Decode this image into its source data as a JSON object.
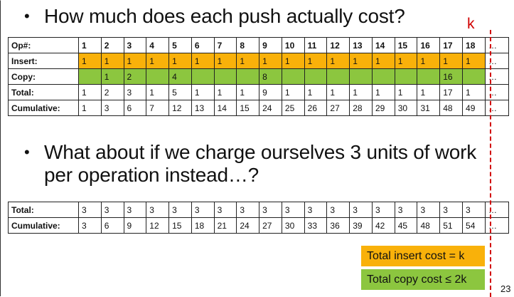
{
  "bullets": {
    "q1": "How much does each push actually cost?",
    "q2_line1": "What about if we charge ourselves 3 units of work",
    "q2_line2": "per operation instead…?",
    "dot": "•"
  },
  "table1": {
    "more": "…",
    "rows": [
      {
        "label": "Op#:",
        "kind": "header",
        "cells": [
          "1",
          "2",
          "3",
          "4",
          "5",
          "6",
          "7",
          "8",
          "9",
          "10",
          "11",
          "12",
          "13",
          "14",
          "15",
          "16",
          "17",
          "18"
        ]
      },
      {
        "label": "Insert:",
        "kind": "insert",
        "cells": [
          "1",
          "1",
          "1",
          "1",
          "1",
          "1",
          "1",
          "1",
          "1",
          "1",
          "1",
          "1",
          "1",
          "1",
          "1",
          "1",
          "1",
          "1"
        ]
      },
      {
        "label": "Copy:",
        "kind": "copy",
        "cells": [
          "",
          "1",
          "2",
          "",
          "4",
          "",
          "",
          "",
          "8",
          "",
          "",
          "",
          "",
          "",
          "",
          "",
          "16",
          ""
        ]
      },
      {
        "label": "Total:",
        "kind": "plain",
        "cells": [
          "1",
          "2",
          "3",
          "1",
          "5",
          "1",
          "1",
          "1",
          "9",
          "1",
          "1",
          "1",
          "1",
          "1",
          "1",
          "1",
          "17",
          "1"
        ]
      },
      {
        "label": "Cumulative:",
        "kind": "plain",
        "cells": [
          "1",
          "3",
          "6",
          "7",
          "12",
          "13",
          "14",
          "15",
          "24",
          "25",
          "26",
          "27",
          "28",
          "29",
          "30",
          "31",
          "48",
          "49"
        ]
      }
    ]
  },
  "table2": {
    "more": "…",
    "rows": [
      {
        "label": "Total:",
        "kind": "plain",
        "cells": [
          "3",
          "3",
          "3",
          "3",
          "3",
          "3",
          "3",
          "3",
          "3",
          "3",
          "3",
          "3",
          "3",
          "3",
          "3",
          "3",
          "3",
          "3"
        ]
      },
      {
        "label": "Cumulative:",
        "kind": "plain",
        "cells": [
          "3",
          "6",
          "9",
          "12",
          "15",
          "18",
          "21",
          "24",
          "27",
          "30",
          "33",
          "36",
          "39",
          "42",
          "45",
          "48",
          "51",
          "54"
        ]
      }
    ]
  },
  "marker": {
    "label": "k",
    "color": "#d10000"
  },
  "legend": {
    "insert": "Total insert cost = k",
    "copy": "Total copy cost ≤ 2k"
  },
  "colors": {
    "insert": "#f9b10a",
    "copy": "#8cc63f"
  },
  "page_number": "23"
}
